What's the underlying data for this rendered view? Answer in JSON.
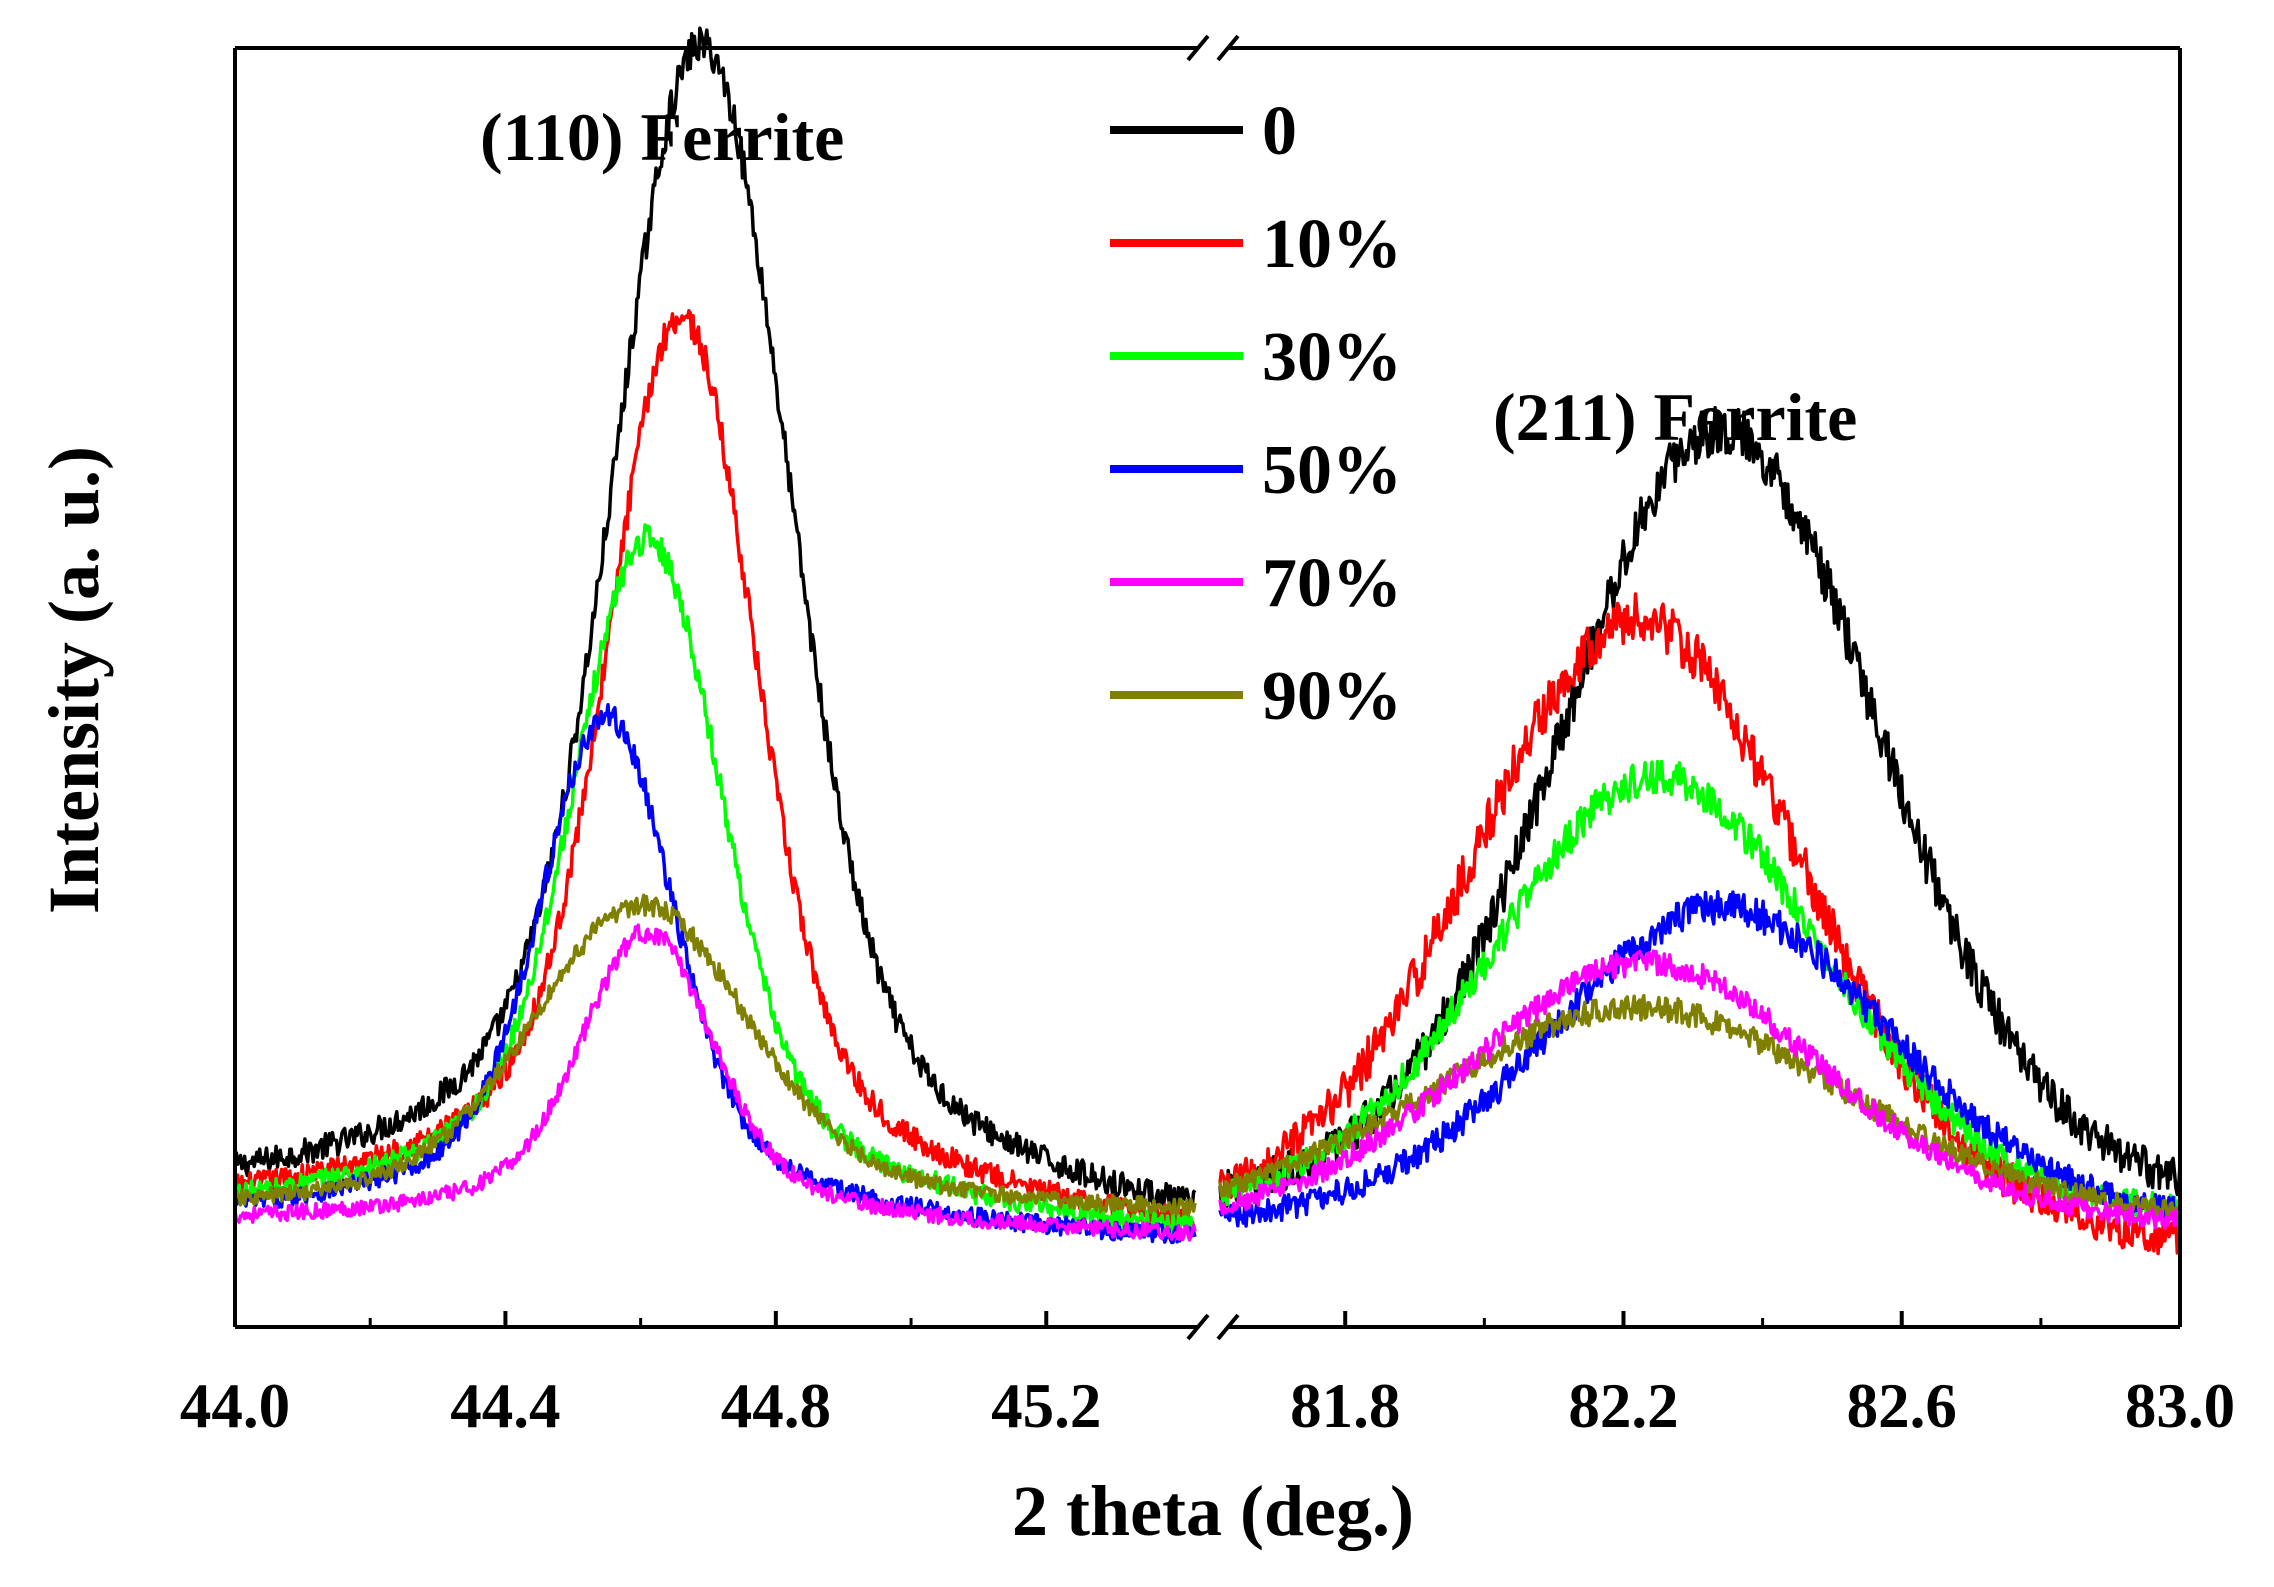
{
  "chart_data": {
    "type": "line",
    "title": "",
    "xlabel": "2 theta (deg.)",
    "ylabel": "Intensity (a. u.)",
    "y_ticks_shown": false,
    "broken_x_axis": true,
    "panels": [
      {
        "name": "left",
        "xlim": [
          44.0,
          45.42
        ],
        "major_ticks": [
          44.0,
          44.4,
          44.8,
          45.2
        ],
        "tick_labels": [
          "44.0",
          "44.4",
          "44.8",
          "45.2"
        ],
        "minor_ticks": [
          44.2,
          44.6,
          45.0
        ],
        "peak_label": "(110) Ferrite"
      },
      {
        "name": "right",
        "xlim": [
          81.62,
          83.0
        ],
        "major_ticks": [
          81.8,
          82.2,
          82.6,
          83.0
        ],
        "tick_labels": [
          "81.8",
          "82.2",
          "82.6",
          "83.0"
        ],
        "minor_ticks": [
          82.0,
          82.4,
          82.8
        ],
        "peak_label": "(211) Ferrite"
      }
    ],
    "y_range": [
      0,
      1000
    ],
    "series": [
      {
        "name": "0",
        "color": "#000000",
        "left": {
          "center": 44.69,
          "height": 930,
          "sigma": 0.12,
          "tail": 0.3,
          "baseline": 85,
          "shift": -25,
          "noise": 14
        },
        "right": {
          "center": 82.34,
          "height": 640,
          "sigma": 0.22,
          "tail": 0.4,
          "baseline": 62,
          "shift": 0,
          "noise": 20
        }
      },
      {
        "name": "10%",
        "color": "#ff0000",
        "left": {
          "center": 44.66,
          "height": 720,
          "sigma": 0.1,
          "tail": 0.28,
          "baseline": 80,
          "shift": -20,
          "noise": 12
        },
        "right": {
          "center": 82.22,
          "height": 505,
          "sigma": 0.23,
          "tail": 0.38,
          "baseline": 55,
          "shift": -15,
          "noise": 20
        }
      },
      {
        "name": "30%",
        "color": "#00ff00",
        "left": {
          "center": 44.61,
          "height": 545,
          "sigma": 0.1,
          "tail": 0.28,
          "baseline": 78,
          "shift": -15,
          "noise": 11
        },
        "right": {
          "center": 82.25,
          "height": 360,
          "sigma": 0.23,
          "tail": 0.38,
          "baseline": 70,
          "shift": 0,
          "noise": 14
        }
      },
      {
        "name": "50%",
        "color": "#0000ff",
        "left": {
          "center": 44.55,
          "height": 405,
          "sigma": 0.09,
          "tail": 0.25,
          "baseline": 78,
          "shift": -15,
          "noise": 10
        },
        "right": {
          "center": 82.34,
          "height": 258,
          "sigma": 0.24,
          "tail": 0.36,
          "baseline": 70,
          "shift": 0,
          "noise": 13
        }
      },
      {
        "name": "70%",
        "color": "#ff00ff",
        "left": {
          "center": 44.61,
          "height": 235,
          "sigma": 0.09,
          "tail": 0.25,
          "baseline": 78,
          "shift": -10,
          "noise": 8
        },
        "right": {
          "center": 82.23,
          "height": 215,
          "sigma": 0.25,
          "tail": 0.38,
          "baseline": 70,
          "shift": 0,
          "noise": 10
        }
      },
      {
        "name": "90%",
        "color": "#808000",
        "left": {
          "center": 44.6,
          "height": 245,
          "sigma": 0.15,
          "tail": 0.32,
          "baseline": 85,
          "shift": 0,
          "noise": 8
        },
        "right": {
          "center": 82.22,
          "height": 175,
          "sigma": 0.3,
          "tail": 0.42,
          "baseline": 75,
          "shift": 0,
          "noise": 10
        }
      }
    ]
  }
}
